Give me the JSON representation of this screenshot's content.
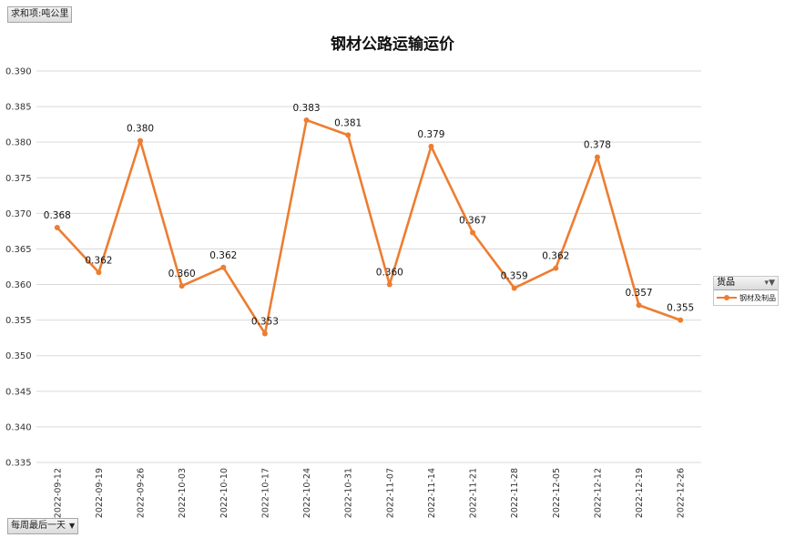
{
  "field_buttons": {
    "value_field": "求和项:吨公里",
    "filter_field": "每周最后一天"
  },
  "legend": {
    "header": "货品",
    "series_name": "钢材及制品"
  },
  "colors": {
    "series": "#ED7D31",
    "gridline": "#d9d9d9"
  },
  "chart_data": {
    "type": "line",
    "title": "钢材公路运输运价",
    "xlabel": "",
    "ylabel": "",
    "ylim": [
      0.335,
      0.39
    ],
    "ytick_step": 0.005,
    "y_tick_labels": [
      "0.335",
      "0.340",
      "0.345",
      "0.350",
      "0.355",
      "0.360",
      "0.365",
      "0.370",
      "0.375",
      "0.380",
      "0.385",
      "0.390"
    ],
    "grid": true,
    "legend_position": "right",
    "categories": [
      "2022-09-12",
      "2022-09-19",
      "2022-09-26",
      "2022-10-03",
      "2022-10-10",
      "2022-10-17",
      "2022-10-24",
      "2022-10-31",
      "2022-11-07",
      "2022-11-14",
      "2022-11-21",
      "2022-11-28",
      "2022-12-05",
      "2022-12-12",
      "2022-12-19",
      "2022-12-26"
    ],
    "series": [
      {
        "name": "钢材及制品",
        "values": [
          0.368,
          0.3617,
          0.3802,
          0.3598,
          0.3624,
          0.3531,
          0.3831,
          0.381,
          0.36,
          0.3794,
          0.3673,
          0.3595,
          0.3623,
          0.3779,
          0.3571,
          0.355
        ],
        "data_labels": [
          "0.368",
          "0.362",
          "0.380",
          "0.360",
          "0.362",
          "0.353",
          "0.383",
          "0.381",
          "0.360",
          "0.379",
          "0.367",
          "0.359",
          "0.362",
          "0.378",
          "0.357",
          "0.355"
        ]
      }
    ]
  }
}
